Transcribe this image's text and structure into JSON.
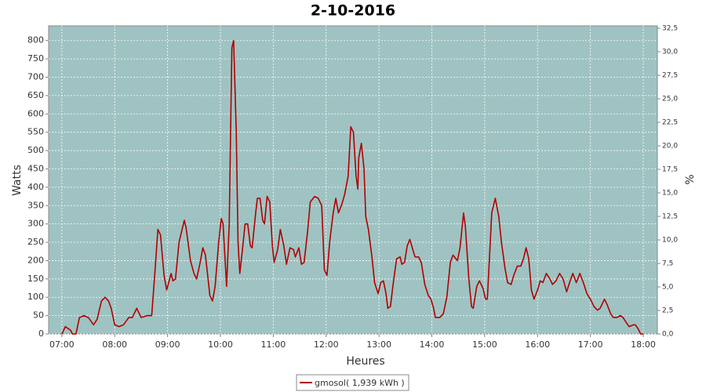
{
  "chart_data": {
    "type": "line",
    "title": "2-10-2016",
    "x_label": "Heures",
    "y_label": "Watts",
    "y2_label": "%",
    "xlim": [
      "06:45",
      "18:16"
    ],
    "xticks": [
      "07:00",
      "08:00",
      "09:00",
      "10:00",
      "11:00",
      "12:00",
      "13:00",
      "14:00",
      "15:00",
      "16:00",
      "17:00",
      "18:00"
    ],
    "ylim": [
      0,
      840
    ],
    "yticks": [
      0,
      50,
      100,
      150,
      200,
      250,
      300,
      350,
      400,
      450,
      500,
      550,
      600,
      650,
      700,
      750,
      800
    ],
    "y2lim": [
      0,
      32.75
    ],
    "y2ticks": [
      {
        "value": 0,
        "label": "0,0"
      },
      {
        "value": 2.5,
        "label": "2,5"
      },
      {
        "value": 5,
        "label": "5,0"
      },
      {
        "value": 7.5,
        "label": "7,5"
      },
      {
        "value": 10,
        "label": "10,0"
      },
      {
        "value": 12.5,
        "label": "12,5"
      },
      {
        "value": 15,
        "label": "15,0"
      },
      {
        "value": 17.5,
        "label": "17,5"
      },
      {
        "value": 20,
        "label": "20,0"
      },
      {
        "value": 22.5,
        "label": "22,5"
      },
      {
        "value": 25,
        "label": "25,0"
      },
      {
        "value": 27.5,
        "label": "27,5"
      },
      {
        "value": 30,
        "label": "30,0"
      },
      {
        "value": 32.5,
        "label": "32,5"
      }
    ],
    "grid": true,
    "plot_background": "#9fc3c2",
    "legend_position": "bottom",
    "x": [
      "07:00",
      "07:04",
      "07:10",
      "07:12",
      "07:16",
      "07:20",
      "07:25",
      "07:30",
      "07:36",
      "07:40",
      "07:45",
      "07:49",
      "07:53",
      "07:56",
      "08:00",
      "08:05",
      "08:10",
      "08:16",
      "08:20",
      "08:25",
      "08:30",
      "08:37",
      "08:42",
      "08:46",
      "08:49",
      "08:52",
      "08:56",
      "08:59",
      "09:04",
      "09:06",
      "09:09",
      "09:13",
      "09:19",
      "09:21",
      "09:26",
      "09:30",
      "09:33",
      "09:37",
      "09:40",
      "09:43",
      "09:46",
      "09:48",
      "09:51",
      "09:54",
      "09:58",
      "10:01",
      "10:03",
      "10:07",
      "10:10",
      "10:13",
      "10:15",
      "10:18",
      "10:20",
      "10:22",
      "10:25",
      "10:28",
      "10:31",
      "10:34",
      "10:36",
      "10:40",
      "10:42",
      "10:45",
      "10:48",
      "10:50",
      "10:53",
      "10:56",
      "10:59",
      "11:01",
      "11:05",
      "11:08",
      "11:12",
      "11:15",
      "11:19",
      "11:23",
      "11:25",
      "11:29",
      "11:32",
      "11:35",
      "11:39",
      "11:42",
      "11:47",
      "11:51",
      "11:55",
      "11:58",
      "12:01",
      "12:04",
      "12:08",
      "12:11",
      "12:14",
      "12:18",
      "12:21",
      "12:25",
      "12:28",
      "12:31",
      "12:34",
      "12:36",
      "12:37",
      "12:40",
      "12:43",
      "12:45",
      "12:48",
      "12:52",
      "12:55",
      "12:59",
      "13:02",
      "13:05",
      "13:08",
      "13:10",
      "13:13",
      "13:16",
      "13:20",
      "13:24",
      "13:26",
      "13:29",
      "13:32",
      "13:35",
      "13:39",
      "13:41",
      "13:45",
      "13:48",
      "13:52",
      "13:56",
      "13:59",
      "14:02",
      "14:04",
      "14:09",
      "14:13",
      "14:17",
      "14:21",
      "14:24",
      "14:29",
      "14:32",
      "14:36",
      "14:38",
      "14:42",
      "14:45",
      "14:47",
      "14:51",
      "14:54",
      "14:58",
      "15:01",
      "15:03",
      "15:08",
      "15:12",
      "15:16",
      "15:19",
      "15:23",
      "15:26",
      "15:30",
      "15:33",
      "15:37",
      "15:41",
      "15:44",
      "15:47",
      "15:50",
      "15:53",
      "15:56",
      "16:00",
      "16:03",
      "16:06",
      "16:10",
      "16:14",
      "16:17",
      "16:21",
      "16:25",
      "16:29",
      "16:33",
      "16:37",
      "16:40",
      "16:44",
      "16:48",
      "16:52",
      "16:56",
      "17:00",
      "17:04",
      "17:08",
      "17:11",
      "17:16",
      "17:19",
      "17:23",
      "17:26",
      "17:30",
      "17:34",
      "17:37",
      "17:41",
      "17:44",
      "17:49",
      "17:51",
      "17:54",
      "17:57",
      "18:00"
    ],
    "series": [
      {
        "name": "gmosol( 1,939 kWh )",
        "color": "#b00000",
        "values": [
          0,
          20,
          10,
          0,
          0,
          45,
          50,
          45,
          25,
          40,
          90,
          100,
          90,
          70,
          25,
          20,
          25,
          45,
          45,
          70,
          45,
          50,
          50,
          180,
          285,
          270,
          160,
          120,
          165,
          145,
          150,
          250,
          310,
          290,
          200,
          165,
          150,
          195,
          235,
          215,
          150,
          105,
          90,
          130,
          250,
          315,
          300,
          130,
          300,
          780,
          800,
          550,
          250,
          165,
          230,
          300,
          300,
          240,
          235,
          330,
          370,
          370,
          310,
          300,
          375,
          360,
          240,
          195,
          230,
          285,
          240,
          190,
          235,
          230,
          210,
          235,
          190,
          195,
          280,
          360,
          375,
          370,
          350,
          175,
          160,
          250,
          330,
          370,
          330,
          355,
          380,
          430,
          565,
          550,
          430,
          395,
          480,
          520,
          450,
          320,
          285,
          210,
          140,
          110,
          140,
          145,
          110,
          70,
          75,
          135,
          205,
          210,
          190,
          195,
          240,
          258,
          225,
          210,
          210,
          195,
          135,
          105,
          95,
          70,
          45,
          45,
          55,
          100,
          195,
          215,
          200,
          235,
          330,
          295,
          150,
          75,
          70,
          130,
          145,
          125,
          95,
          95,
          330,
          370,
          320,
          250,
          180,
          140,
          135,
          160,
          185,
          185,
          205,
          235,
          205,
          120,
          95,
          120,
          145,
          140,
          165,
          150,
          135,
          145,
          165,
          150,
          115,
          145,
          165,
          140,
          165,
          140,
          110,
          95,
          75,
          65,
          70,
          95,
          80,
          55,
          45,
          45,
          50,
          45,
          30,
          20,
          25,
          25,
          15,
          0,
          0
        ]
      }
    ]
  }
}
